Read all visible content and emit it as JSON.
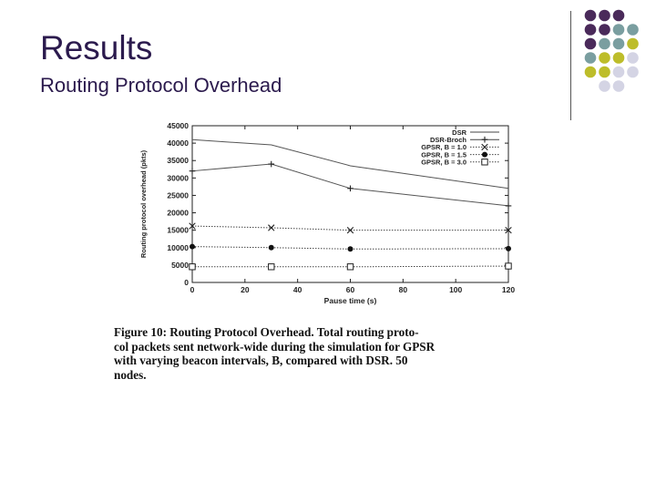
{
  "slide": {
    "title": "Results",
    "subtitle": "Routing Protocol Overhead"
  },
  "decor": {
    "dot_colors": {
      "purple": "#4a2a5a",
      "teal": "#7a9ea0",
      "olive": "#bdbd2a",
      "lavender": "#d4d4e4"
    },
    "dot_grid": [
      [
        "purple",
        "purple",
        "purple",
        ""
      ],
      [
        "purple",
        "purple",
        "teal",
        "teal"
      ],
      [
        "purple",
        "teal",
        "teal",
        "olive"
      ],
      [
        "teal",
        "olive",
        "olive",
        "lavender"
      ],
      [
        "olive",
        "olive",
        "lavender",
        "lavender"
      ],
      [
        "",
        "lavender",
        "lavender",
        ""
      ]
    ]
  },
  "chart_data": {
    "type": "line",
    "xlabel": "Pause time (s)",
    "ylabel": "Routing protocol overhead (pkts)",
    "xlim": [
      0,
      120
    ],
    "ylim": [
      0,
      45000
    ],
    "xticks": [
      0,
      20,
      40,
      60,
      80,
      100,
      120
    ],
    "yticks": [
      0,
      5000,
      10000,
      15000,
      20000,
      25000,
      30000,
      35000,
      40000,
      45000
    ],
    "legend_position": "top-right",
    "series": [
      {
        "name": "DSR",
        "marker": "none",
        "dash": "solid",
        "x": [
          0,
          30,
          60,
          120
        ],
        "y": [
          41000,
          39500,
          33500,
          27000
        ]
      },
      {
        "name": "DSR-Broch",
        "marker": "plus",
        "dash": "solid",
        "x": [
          0,
          30,
          60,
          120
        ],
        "y": [
          32000,
          34000,
          27000,
          22000
        ]
      },
      {
        "name": "GPSR, B = 1.0",
        "marker": "cross",
        "dash": "dotted",
        "x": [
          0,
          30,
          60,
          120
        ],
        "y": [
          16200,
          15700,
          15000,
          15000
        ]
      },
      {
        "name": "GPSR, B = 1.5",
        "marker": "filled-circle",
        "dash": "dotted",
        "x": [
          0,
          30,
          60,
          120
        ],
        "y": [
          10300,
          10000,
          9600,
          9700
        ]
      },
      {
        "name": "GPSR, B = 3.0",
        "marker": "open-square",
        "dash": "dotted",
        "x": [
          0,
          30,
          60,
          120
        ],
        "y": [
          4500,
          4500,
          4500,
          4700
        ]
      }
    ]
  },
  "caption": {
    "lines": [
      "Figure 10:  Routing Protocol Overhead.  Total routing proto-",
      "col packets sent network-wide during the simulation for GPSR",
      "with varying beacon intervals, B, compared with DSR.  50",
      "nodes."
    ]
  }
}
